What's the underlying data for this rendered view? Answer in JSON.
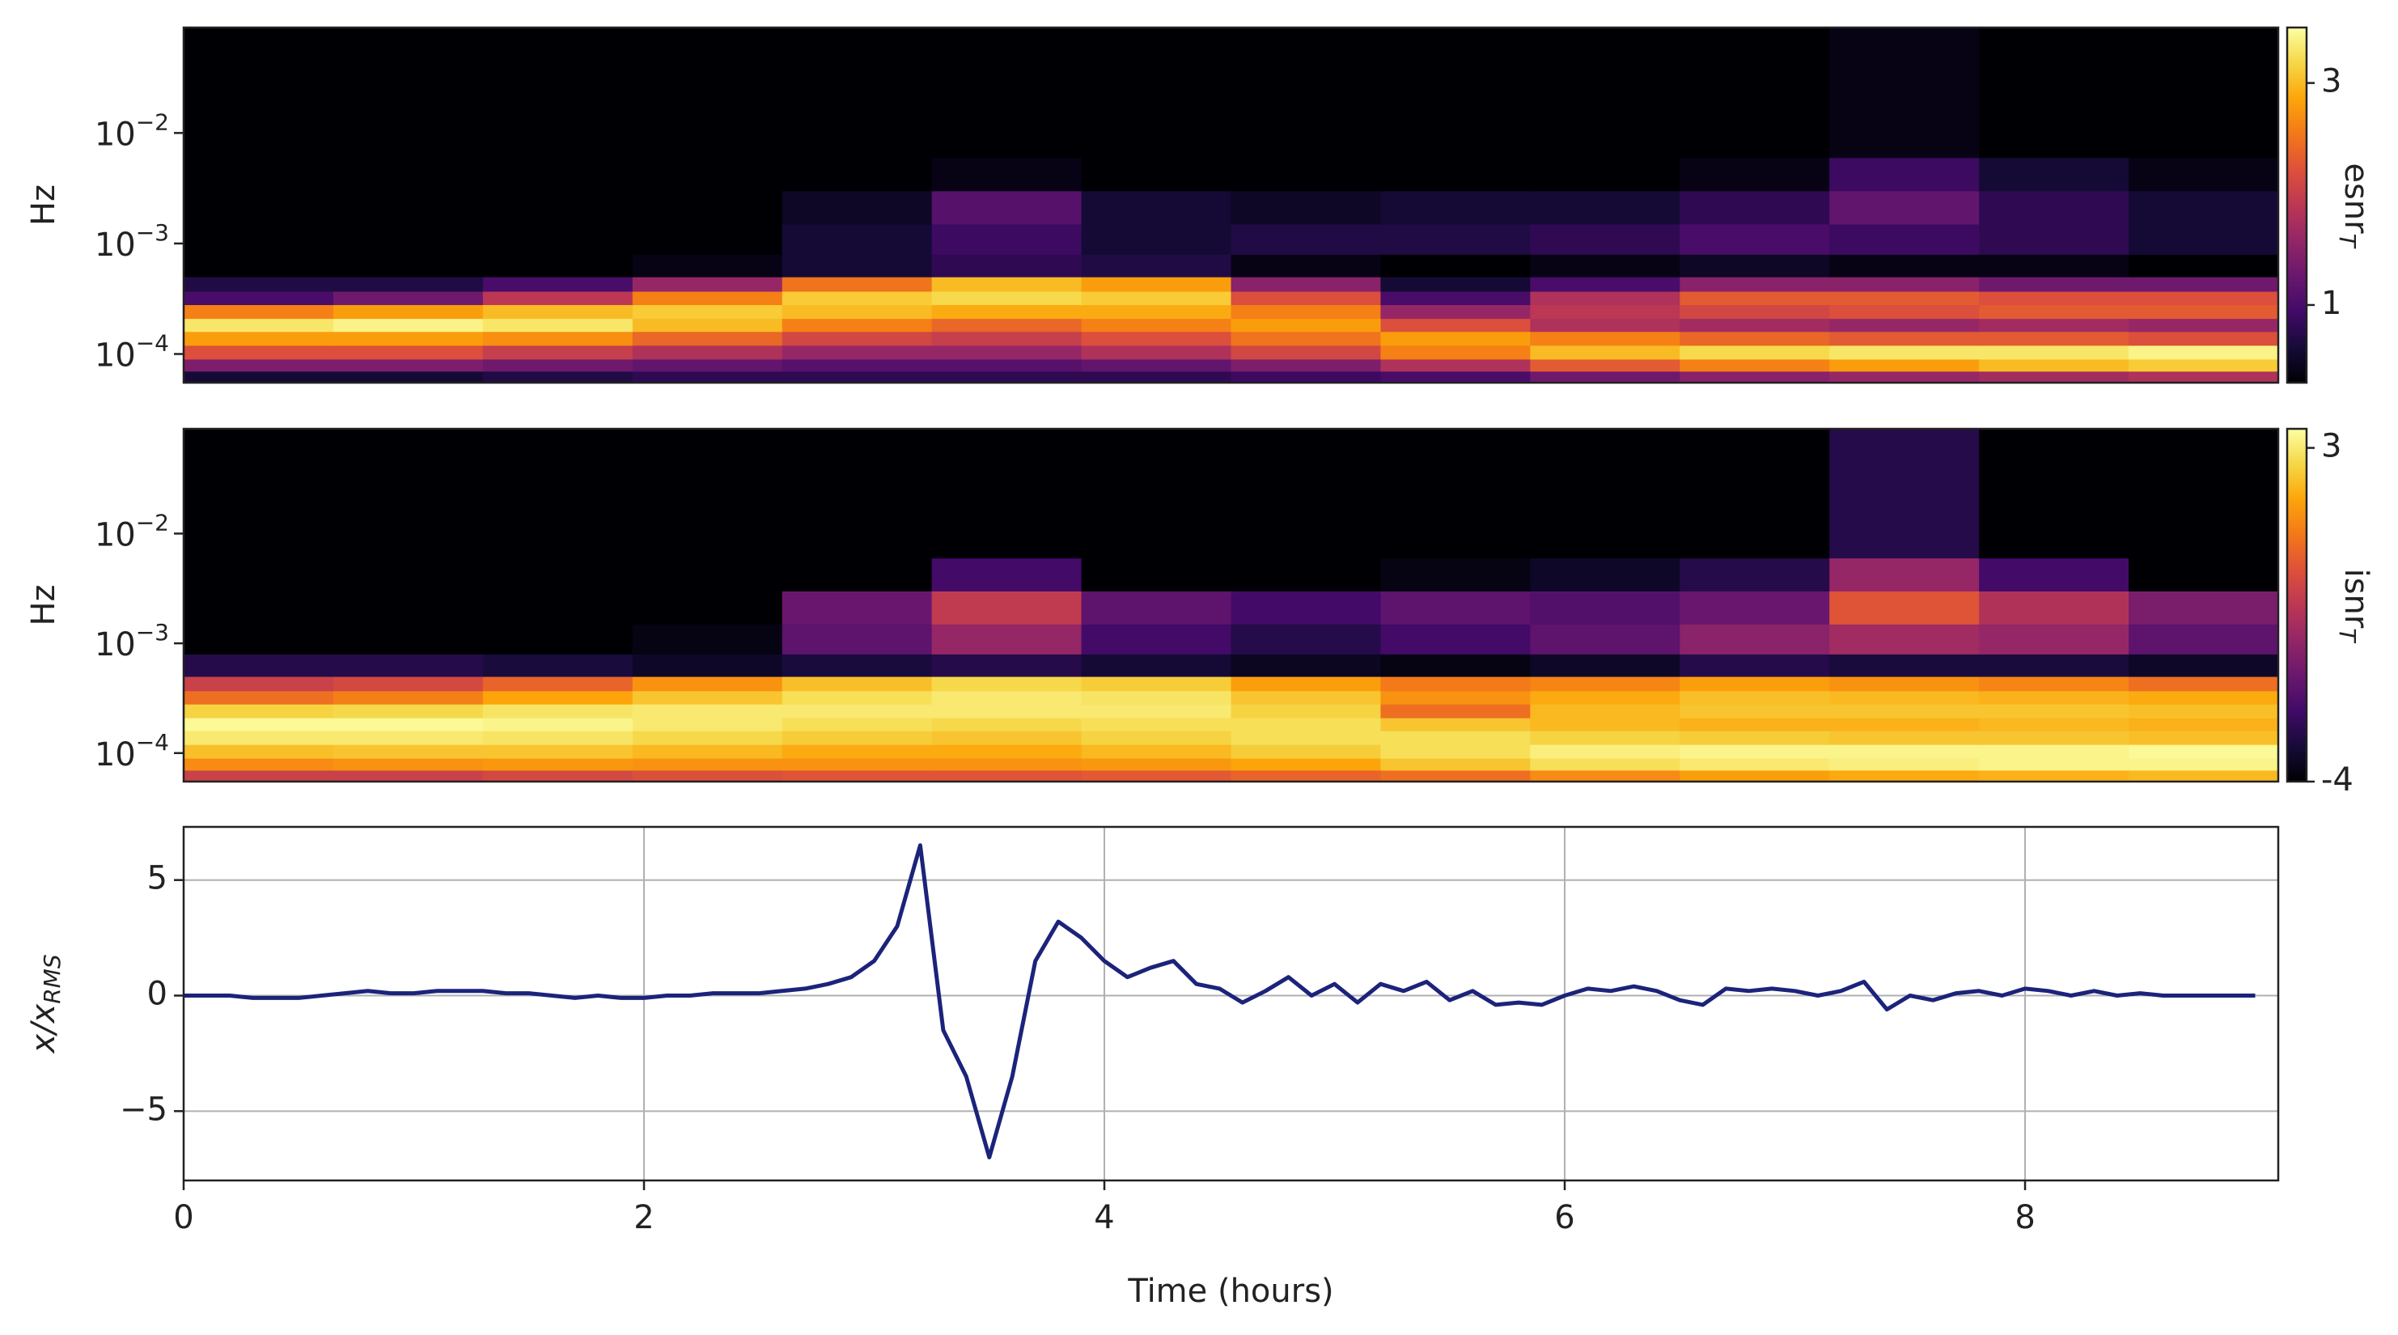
{
  "chart_data": [
    {
      "type": "heatmap",
      "colormap": "inferno",
      "log_y": true,
      "ylabel": "Hz",
      "colorbar_label": "esnr",
      "colorbar_label_sub": "T",
      "xbins": [
        0,
        0.65,
        1.3,
        1.95,
        2.6,
        3.25,
        3.9,
        4.55,
        5.2,
        5.85,
        6.5,
        7.15,
        7.8,
        8.45,
        9.1
      ],
      "ybins": [
        5.5e-05,
        7e-05,
        9e-05,
        0.00012,
        0.00016,
        0.00021,
        0.00028,
        0.00037,
        0.0005,
        0.0008,
        0.0015,
        0.003,
        0.006,
        0.09
      ],
      "ylim": [
        5.5e-05,
        0.09
      ],
      "yticks": [
        {
          "value": 0.0001,
          "label": "10",
          "exponent": "−4"
        },
        {
          "value": 0.001,
          "label": "10",
          "exponent": "−3"
        },
        {
          "value": 0.01,
          "label": "10",
          "exponent": "−2"
        }
      ],
      "clim": [
        0.3,
        3.5
      ],
      "cticks": [
        1,
        3
      ],
      "z": [
        [
          0.6,
          0.6,
          0.7,
          0.8,
          0.8,
          0.8,
          0.8,
          0.9,
          1.0,
          1.3,
          1.5,
          1.6,
          1.7,
          1.8
        ],
        [
          1.4,
          1.4,
          1.3,
          1.2,
          1.1,
          1.1,
          1.2,
          1.4,
          1.8,
          2.3,
          2.6,
          2.8,
          3.0,
          3.1
        ],
        [
          2.2,
          2.2,
          2.0,
          1.8,
          1.6,
          1.6,
          1.8,
          2.1,
          2.6,
          3.0,
          3.2,
          3.3,
          3.3,
          3.4
        ],
        [
          2.8,
          2.8,
          2.7,
          2.4,
          2.1,
          2.0,
          2.2,
          2.5,
          2.8,
          2.6,
          2.4,
          2.3,
          2.3,
          2.2
        ],
        [
          3.3,
          3.4,
          3.3,
          3.0,
          2.6,
          2.4,
          2.6,
          2.8,
          2.2,
          1.8,
          1.7,
          1.6,
          1.7,
          1.6
        ],
        [
          2.6,
          2.8,
          3.0,
          3.1,
          3.0,
          2.9,
          2.9,
          2.6,
          1.6,
          1.9,
          2.1,
          2.2,
          2.3,
          2.3
        ],
        [
          1.0,
          1.3,
          1.9,
          2.6,
          3.1,
          3.2,
          3.1,
          2.2,
          1.0,
          1.8,
          2.3,
          2.3,
          2.2,
          2.2
        ],
        [
          0.7,
          0.7,
          1.0,
          1.6,
          2.5,
          3.0,
          2.8,
          1.5,
          0.6,
          1.0,
          1.5,
          1.5,
          1.3,
          1.3
        ],
        [
          0.3,
          0.3,
          0.3,
          0.4,
          0.6,
          0.8,
          0.7,
          0.4,
          0.3,
          0.4,
          0.5,
          0.4,
          0.4,
          0.3
        ],
        [
          0.3,
          0.3,
          0.3,
          0.3,
          0.6,
          0.9,
          0.6,
          0.7,
          0.7,
          0.8,
          1.0,
          0.9,
          0.8,
          0.6
        ],
        [
          0.3,
          0.3,
          0.3,
          0.3,
          0.5,
          1.1,
          0.6,
          0.5,
          0.6,
          0.6,
          0.8,
          1.2,
          0.8,
          0.6
        ],
        [
          0.3,
          0.3,
          0.3,
          0.3,
          0.3,
          0.4,
          0.3,
          0.3,
          0.3,
          0.3,
          0.4,
          0.9,
          0.6,
          0.4
        ],
        [
          0.3,
          0.3,
          0.3,
          0.3,
          0.3,
          0.3,
          0.3,
          0.3,
          0.3,
          0.3,
          0.3,
          0.4,
          0.3,
          0.3
        ]
      ]
    },
    {
      "type": "heatmap",
      "colormap": "inferno",
      "log_y": true,
      "ylabel": "Hz",
      "colorbar_label": "isnr",
      "colorbar_label_sub": "T",
      "xbins": [
        0,
        0.65,
        1.3,
        1.95,
        2.6,
        3.25,
        3.9,
        4.55,
        5.2,
        5.85,
        6.5,
        7.15,
        7.8,
        8.45,
        9.1
      ],
      "ybins": [
        5.5e-05,
        7e-05,
        9e-05,
        0.00012,
        0.00016,
        0.00021,
        0.00028,
        0.00037,
        0.0005,
        0.0008,
        0.0015,
        0.003,
        0.006,
        0.09
      ],
      "ylim": [
        5.5e-05,
        0.09
      ],
      "yticks": [
        {
          "value": 0.0001,
          "label": "10",
          "exponent": "−4"
        },
        {
          "value": 0.001,
          "label": "10",
          "exponent": "−3"
        },
        {
          "value": 0.01,
          "label": "10",
          "exponent": "−2"
        }
      ],
      "clim": [
        -4,
        3.4
      ],
      "cticks": [
        -4,
        3
      ],
      "z": [
        [
          0.0,
          0.0,
          0.2,
          0.4,
          0.5,
          0.5,
          0.6,
          0.8,
          1.0,
          1.5,
          1.8,
          2.0,
          2.1,
          2.2
        ],
        [
          1.5,
          1.6,
          1.7,
          1.6,
          1.6,
          1.6,
          1.7,
          1.9,
          2.4,
          2.8,
          3.0,
          3.1,
          3.2,
          3.2
        ],
        [
          2.3,
          2.4,
          2.4,
          2.2,
          2.0,
          2.0,
          2.2,
          2.5,
          2.8,
          3.1,
          3.2,
          3.2,
          3.2,
          3.3
        ],
        [
          3.0,
          3.0,
          2.9,
          2.7,
          2.5,
          2.4,
          2.6,
          2.8,
          2.8,
          2.6,
          2.5,
          2.4,
          2.4,
          2.3
        ],
        [
          3.3,
          3.3,
          3.2,
          3.0,
          2.8,
          2.7,
          2.8,
          2.8,
          2.4,
          2.2,
          2.1,
          2.1,
          2.2,
          2.1
        ],
        [
          2.6,
          2.7,
          2.9,
          3.0,
          3.0,
          3.0,
          3.0,
          2.6,
          1.0,
          2.2,
          2.4,
          2.4,
          2.4,
          2.3
        ],
        [
          1.0,
          1.3,
          1.9,
          2.4,
          2.8,
          3.0,
          2.9,
          2.4,
          1.6,
          2.0,
          2.3,
          2.2,
          2.1,
          2.0
        ],
        [
          0.0,
          0.2,
          0.8,
          1.6,
          2.3,
          2.7,
          2.5,
          1.8,
          1.2,
          1.4,
          1.8,
          1.6,
          1.4,
          1.0
        ],
        [
          -3.0,
          -3.0,
          -3.2,
          -3.5,
          -3.2,
          -3.0,
          -3.3,
          -3.6,
          -3.8,
          -3.5,
          -3.0,
          -3.2,
          -3.2,
          -3.5
        ],
        [
          -4,
          -4,
          -4,
          -3.8,
          -2.0,
          -1.0,
          -2.5,
          -3.0,
          -2.5,
          -2.0,
          -1.2,
          -0.8,
          -1.0,
          -2.0
        ],
        [
          -4,
          -4,
          -4,
          -4,
          -1.8,
          -0.2,
          -2.0,
          -2.5,
          -2.0,
          -2.2,
          -1.8,
          0.5,
          -0.5,
          -1.5
        ],
        [
          -4,
          -4,
          -4,
          -4,
          -4,
          -2.5,
          -4,
          -4,
          -3.8,
          -3.5,
          -3.0,
          -1.0,
          -2.5,
          -4
        ],
        [
          -4,
          -4,
          -4,
          -4,
          -4,
          -4,
          -4,
          -4,
          -4,
          -4,
          -4,
          -3.0,
          -4,
          -4
        ]
      ]
    },
    {
      "type": "line",
      "grid": true,
      "xlabel": "Time (hours)",
      "ylabel": "x/x",
      "ylabel_sub": "RMS",
      "xlim": [
        0,
        9.1
      ],
      "xticks": [
        0,
        2,
        4,
        6,
        8
      ],
      "ylim": [
        -8,
        7.3
      ],
      "yticks": [
        {
          "value": -5,
          "label": "−5"
        },
        0,
        5
      ],
      "x": [
        0,
        0.1,
        0.2,
        0.3,
        0.4,
        0.5,
        0.6,
        0.7,
        0.8,
        0.9,
        1.0,
        1.1,
        1.2,
        1.3,
        1.4,
        1.5,
        1.6,
        1.7,
        1.8,
        1.9,
        2.0,
        2.1,
        2.2,
        2.3,
        2.4,
        2.5,
        2.6,
        2.7,
        2.8,
        2.9,
        3.0,
        3.1,
        3.2,
        3.3,
        3.4,
        3.5,
        3.6,
        3.7,
        3.8,
        3.9,
        4.0,
        4.1,
        4.2,
        4.3,
        4.4,
        4.5,
        4.6,
        4.7,
        4.8,
        4.9,
        5.0,
        5.1,
        5.2,
        5.3,
        5.4,
        5.5,
        5.6,
        5.7,
        5.8,
        5.9,
        6.0,
        6.1,
        6.2,
        6.3,
        6.4,
        6.5,
        6.6,
        6.7,
        6.8,
        6.9,
        7.0,
        7.1,
        7.2,
        7.3,
        7.4,
        7.5,
        7.6,
        7.7,
        7.8,
        7.9,
        8.0,
        8.1,
        8.2,
        8.3,
        8.4,
        8.5,
        8.6,
        8.7,
        8.8,
        8.9,
        9.0
      ],
      "series": [
        {
          "color": "#1b237a",
          "values": [
            0,
            0,
            0,
            -0.1,
            -0.1,
            -0.1,
            0,
            0.1,
            0.2,
            0.1,
            0.1,
            0.2,
            0.2,
            0.2,
            0.1,
            0.1,
            0,
            -0.1,
            0,
            -0.1,
            -0.1,
            0,
            0,
            0.1,
            0.1,
            0.1,
            0.2,
            0.3,
            0.5,
            0.8,
            1.5,
            3.0,
            6.5,
            -1.5,
            -3.5,
            -7.0,
            -3.5,
            1.5,
            3.2,
            2.5,
            1.5,
            0.8,
            1.2,
            1.5,
            0.5,
            0.3,
            -0.3,
            0.2,
            0.8,
            0,
            0.5,
            -0.3,
            0.5,
            0.2,
            0.6,
            -0.2,
            0.2,
            -0.4,
            -0.3,
            -0.4,
            0,
            0.3,
            0.2,
            0.4,
            0.2,
            -0.2,
            -0.4,
            0.3,
            0.2,
            0.3,
            0.2,
            0,
            0.2,
            0.6,
            -0.6,
            0,
            -0.2,
            0.1,
            0.2,
            0,
            0.3,
            0.2,
            0,
            0.2,
            0,
            0.1,
            0,
            0,
            0,
            0,
            0
          ]
        }
      ]
    }
  ]
}
